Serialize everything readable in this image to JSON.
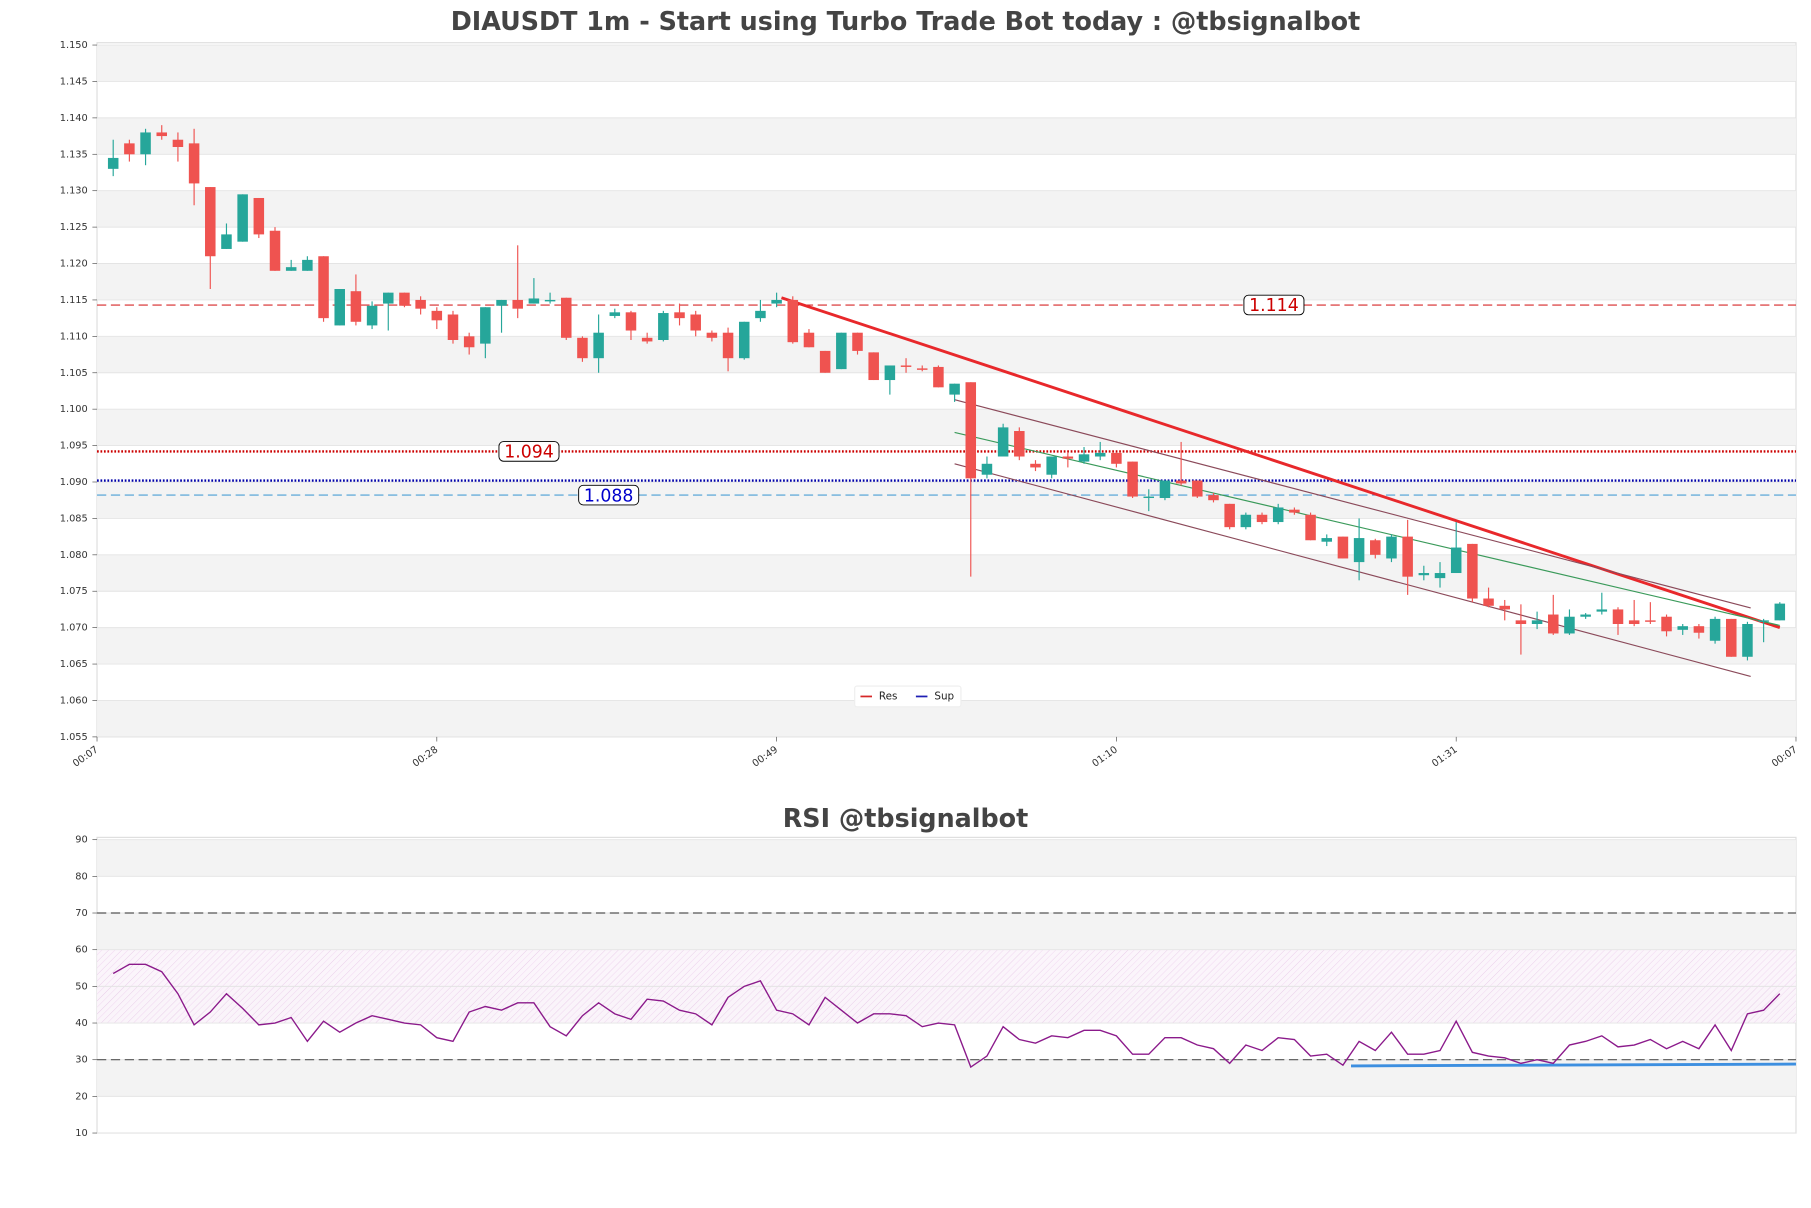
{
  "chart_data": [
    {
      "type": "candlestick",
      "title": "DIAUSDT 1m - Start using Turbo Trade Bot today : @tbsignalbot",
      "x": [
        8,
        9,
        10,
        11,
        12,
        13,
        14,
        15,
        16,
        17,
        18,
        19,
        20,
        21,
        22,
        23,
        24,
        25,
        26,
        27,
        28,
        29,
        30,
        31,
        32,
        33,
        34,
        35,
        36,
        37,
        38,
        39,
        40,
        41,
        42,
        43,
        44,
        45,
        46,
        47,
        48,
        49,
        50,
        51,
        52,
        53,
        54,
        55,
        56,
        57,
        58,
        59,
        60,
        61,
        62,
        63,
        64,
        65,
        66,
        67,
        68,
        69,
        70,
        71,
        72,
        73,
        74,
        75,
        76,
        77,
        78,
        79,
        80,
        81,
        82,
        83,
        84,
        85,
        86,
        87,
        88,
        89,
        90,
        91,
        92,
        93,
        94,
        95,
        96,
        97,
        98,
        99,
        100,
        101,
        102,
        103,
        104,
        105,
        106,
        107,
        108,
        109,
        110,
        111
      ],
      "open": [
        1.133,
        1.1365,
        1.135,
        1.138,
        1.137,
        1.1365,
        1.1305,
        1.122,
        1.123,
        1.129,
        1.1245,
        1.119,
        1.119,
        1.121,
        1.1115,
        1.1162,
        1.1115,
        1.1145,
        1.116,
        1.115,
        1.1135,
        1.113,
        1.11,
        1.109,
        1.1142,
        1.115,
        1.1145,
        1.1148,
        1.1153,
        1.1098,
        1.107,
        1.1128,
        1.1133,
        1.1098,
        1.1095,
        1.1133,
        1.113,
        1.1105,
        1.1105,
        1.107,
        1.1125,
        1.1145,
        1.115,
        1.1105,
        1.108,
        1.1055,
        1.1105,
        1.1078,
        1.104,
        1.106,
        1.1056,
        1.1058,
        1.102,
        1.1037,
        1.091,
        1.0935,
        1.097,
        1.0925,
        1.091,
        1.0935,
        1.0928,
        1.0935,
        1.094,
        1.0928,
        1.0878,
        1.0878,
        1.0902,
        1.0902,
        1.0882,
        1.087,
        1.0838,
        1.0855,
        1.0845,
        1.0862,
        1.0855,
        1.0818,
        1.0825,
        1.079,
        1.082,
        1.0795,
        1.0825,
        1.0772,
        1.0768,
        1.0775,
        1.0815,
        1.074,
        1.073,
        1.071,
        1.0705,
        1.0718,
        1.0692,
        1.0715,
        1.0722,
        1.0725,
        1.071,
        1.071,
        1.0715,
        1.0697,
        1.0702,
        1.0682,
        1.0712,
        1.066,
        1.0708,
        1.071
      ],
      "high": [
        1.137,
        1.137,
        1.1385,
        1.139,
        1.138,
        1.1385,
        1.1305,
        1.1255,
        1.1295,
        1.129,
        1.125,
        1.1205,
        1.121,
        1.121,
        1.1165,
        1.1185,
        1.1148,
        1.116,
        1.116,
        1.1155,
        1.114,
        1.1135,
        1.1105,
        1.114,
        1.115,
        1.1225,
        1.118,
        1.116,
        1.1153,
        1.11,
        1.113,
        1.1138,
        1.1135,
        1.1105,
        1.1135,
        1.1145,
        1.1135,
        1.1108,
        1.1112,
        1.112,
        1.115,
        1.116,
        1.1155,
        1.111,
        1.108,
        1.1105,
        1.1105,
        1.1078,
        1.106,
        1.107,
        1.106,
        1.106,
        1.1035,
        1.1037,
        1.0935,
        1.098,
        1.0975,
        1.093,
        1.0935,
        1.094,
        1.0948,
        1.0955,
        1.094,
        1.0928,
        1.089,
        1.0902,
        1.0955,
        1.0902,
        1.0885,
        1.087,
        1.0858,
        1.0858,
        1.087,
        1.0865,
        1.0858,
        1.0828,
        1.0825,
        1.085,
        1.0822,
        1.0828,
        1.0848,
        1.0785,
        1.079,
        1.0845,
        1.0815,
        1.0755,
        1.0738,
        1.0732,
        1.0722,
        1.0745,
        1.0725,
        1.072,
        1.0748,
        1.0728,
        1.0738,
        1.0735,
        1.0718,
        1.0705,
        1.0705,
        1.0715,
        1.0712,
        1.0708,
        1.0712,
        1.0735
      ],
      "low": [
        1.132,
        1.134,
        1.1335,
        1.137,
        1.134,
        1.128,
        1.1165,
        1.122,
        1.123,
        1.1235,
        1.119,
        1.119,
        1.119,
        1.112,
        1.1115,
        1.1115,
        1.111,
        1.1108,
        1.114,
        1.113,
        1.111,
        1.109,
        1.1075,
        1.107,
        1.1105,
        1.1125,
        1.1145,
        1.1145,
        1.1095,
        1.1065,
        1.105,
        1.1125,
        1.1095,
        1.109,
        1.1093,
        1.1115,
        1.11,
        1.1093,
        1.1052,
        1.1068,
        1.112,
        1.114,
        1.109,
        1.1085,
        1.105,
        1.1055,
        1.1075,
        1.104,
        1.102,
        1.105,
        1.1052,
        1.103,
        1.101,
        1.077,
        1.0905,
        1.0935,
        1.093,
        1.0915,
        1.0905,
        1.092,
        1.0925,
        1.093,
        1.092,
        1.0878,
        1.086,
        1.0875,
        1.0895,
        1.0878,
        1.0872,
        1.0835,
        1.0835,
        1.0842,
        1.0842,
        1.0855,
        1.082,
        1.0812,
        1.0795,
        1.0765,
        1.0795,
        1.079,
        1.0745,
        1.0765,
        1.0755,
        1.0775,
        1.0735,
        1.0728,
        1.071,
        1.0663,
        1.0698,
        1.069,
        1.069,
        1.0712,
        1.0718,
        1.069,
        1.0702,
        1.0705,
        1.0688,
        1.069,
        1.0685,
        1.0678,
        1.066,
        1.0655,
        1.068,
        1.071
      ],
      "close": [
        1.1345,
        1.135,
        1.138,
        1.1375,
        1.136,
        1.131,
        1.121,
        1.124,
        1.1295,
        1.124,
        1.119,
        1.1195,
        1.1205,
        1.1125,
        1.1165,
        1.112,
        1.1142,
        1.116,
        1.1142,
        1.1138,
        1.1122,
        1.1095,
        1.1085,
        1.114,
        1.115,
        1.1138,
        1.1152,
        1.115,
        1.1098,
        1.107,
        1.1105,
        1.1133,
        1.1108,
        1.1093,
        1.1132,
        1.1125,
        1.1108,
        1.1098,
        1.107,
        1.112,
        1.1135,
        1.115,
        1.1092,
        1.1085,
        1.105,
        1.1105,
        1.108,
        1.104,
        1.106,
        1.1058,
        1.1054,
        1.103,
        1.1035,
        1.0905,
        1.0925,
        1.0975,
        1.0935,
        1.092,
        1.0935,
        1.0932,
        1.0938,
        1.094,
        1.0925,
        1.088,
        1.088,
        1.0902,
        1.0898,
        1.088,
        1.0875,
        1.0838,
        1.0855,
        1.0845,
        1.0865,
        1.0858,
        1.082,
        1.0823,
        1.0795,
        1.0823,
        1.08,
        1.0825,
        1.077,
        1.0775,
        1.0775,
        1.081,
        1.074,
        1.073,
        1.0725,
        1.0705,
        1.071,
        1.0692,
        1.0715,
        1.0718,
        1.0725,
        1.0705,
        1.0705,
        1.0708,
        1.0695,
        1.0702,
        1.0693,
        1.0712,
        1.066,
        1.0705,
        1.071,
        1.0733
      ],
      "up_color": "#26a69a",
      "down_color": "#ef5350",
      "xlim": [
        7,
        112
      ],
      "xticks": [
        {
          "value": 7,
          "label": "00:07"
        },
        {
          "value": 28,
          "label": "00:28"
        },
        {
          "value": 49,
          "label": "00:49"
        },
        {
          "value": 70,
          "label": "01:10"
        },
        {
          "value": 91,
          "label": "01:31"
        },
        {
          "value": 112,
          "label": "00:07"
        }
      ],
      "ylim": [
        1.055,
        1.15
      ],
      "yticks": [
        1.055,
        {
          "value": 1.06,
          "label": "1.060"
        },
        1.065,
        {
          "value": 1.07,
          "label": "1.070"
        },
        1.075,
        {
          "value": 1.08,
          "label": "1.080"
        },
        1.085,
        {
          "value": 1.09,
          "label": "1.090"
        },
        1.095,
        {
          "value": 1.1,
          "label": "1.100"
        },
        1.105,
        {
          "value": 1.11,
          "label": "1.110"
        },
        1.115,
        {
          "value": 1.12,
          "label": "1.120"
        },
        1.125,
        {
          "value": 1.13,
          "label": "1.130"
        },
        1.135,
        {
          "value": 1.14,
          "label": "1.140"
        },
        1.145,
        {
          "value": 1.15,
          "label": "1.150"
        }
      ],
      "hlines": [
        {
          "value": 1.1143,
          "color": "#d62728",
          "style": "dashed",
          "label": "1.114"
        },
        {
          "value": 1.0942,
          "color": "#cc0000",
          "style": "dotted",
          "label": "1.094"
        },
        {
          "value": 1.0902,
          "color": "#0000aa",
          "style": "dotted"
        },
        {
          "value": 1.0882,
          "color": "#4a9fd5",
          "style": "dashed",
          "label": "1.088"
        }
      ],
      "trendlines": [
        {
          "x": [
            49.3,
            111
          ],
          "y": [
            1.1153,
            1.07
          ],
          "color": "#e8282b",
          "width": 2.5
        },
        {
          "x": [
            60,
            111
          ],
          "y": [
            1.0968,
            1.0703
          ],
          "color": "#3a9a5a",
          "width": 1
        },
        {
          "x": [
            60,
            109.2
          ],
          "y": [
            1.1013,
            1.0727
          ],
          "color": "#8b4a5a",
          "width": 1
        },
        {
          "x": [
            60,
            109.2
          ],
          "y": [
            1.0925,
            1.0633
          ],
          "color": "#8b4a5a",
          "width": 1
        }
      ],
      "legend": "lower center",
      "legend_entries": [
        {
          "name": "Res",
          "color": "#d62728"
        },
        {
          "name": "Sup",
          "color": "#1f1fb4"
        }
      ],
      "grid": true
    },
    {
      "type": "line",
      "title": "RSI @tbsignalbot",
      "x": [
        8,
        9,
        10,
        11,
        12,
        13,
        14,
        15,
        16,
        17,
        18,
        19,
        20,
        21,
        22,
        23,
        24,
        25,
        26,
        27,
        28,
        29,
        30,
        31,
        32,
        33,
        34,
        35,
        36,
        37,
        38,
        39,
        40,
        41,
        42,
        43,
        44,
        45,
        46,
        47,
        48,
        49,
        50,
        51,
        52,
        53,
        54,
        55,
        56,
        57,
        58,
        59,
        60,
        61,
        62,
        63,
        64,
        65,
        66,
        67,
        68,
        69,
        70,
        71,
        72,
        73,
        74,
        75,
        76,
        77,
        78,
        79,
        80,
        81,
        82,
        83,
        84,
        85,
        86,
        87,
        88,
        89,
        90,
        91,
        92,
        93,
        94,
        95,
        96,
        97,
        98,
        99,
        100,
        101,
        102,
        103,
        104,
        105,
        106,
        107,
        108,
        109,
        110,
        111
      ],
      "values": [
        53.5,
        56,
        56,
        54,
        48,
        39.5,
        43,
        48,
        44,
        39.5,
        40,
        41.5,
        35,
        40.5,
        37.5,
        40,
        42,
        41,
        40,
        39.5,
        36,
        35,
        43,
        44.5,
        43.5,
        45.5,
        45.5,
        39,
        36.5,
        42,
        45.5,
        42.5,
        41,
        46.5,
        46,
        43.5,
        42.5,
        39.5,
        47,
        50,
        51.5,
        43.5,
        42.5,
        39.5,
        47,
        43.5,
        40,
        42.5,
        42.5,
        42,
        39,
        40,
        39.5,
        28,
        31,
        39,
        35.5,
        34.5,
        36.5,
        36,
        38,
        38,
        36.5,
        31.5,
        31.5,
        36,
        36,
        34,
        33,
        29,
        34,
        32.5,
        36,
        35.5,
        31,
        31.5,
        28.5,
        35,
        32.5,
        37.5,
        31.5,
        31.5,
        32.5,
        40.5,
        32,
        31,
        30.5,
        29,
        30,
        29,
        34,
        35,
        36.5,
        33.5,
        34,
        35.5,
        33,
        35,
        33,
        39.5,
        32.5,
        42.5,
        43.5,
        48
      ],
      "color": "#8b1a8b",
      "xlim": [
        7,
        112
      ],
      "ylim": [
        10,
        90
      ],
      "yticks": [
        10,
        20,
        30,
        40,
        50,
        60,
        70,
        80,
        90
      ],
      "hlines": [
        {
          "value": 70,
          "color": "#555555",
          "style": "dashed"
        },
        {
          "value": 30,
          "color": "#555555",
          "style": "dashed"
        }
      ],
      "band": [
        40,
        60
      ],
      "trendlines": [
        {
          "x": [
            84.5,
            112
          ],
          "y": [
            28.3,
            28.8
          ],
          "color": "#3d8fe0",
          "width": 2.5
        }
      ],
      "grid": true
    }
  ]
}
